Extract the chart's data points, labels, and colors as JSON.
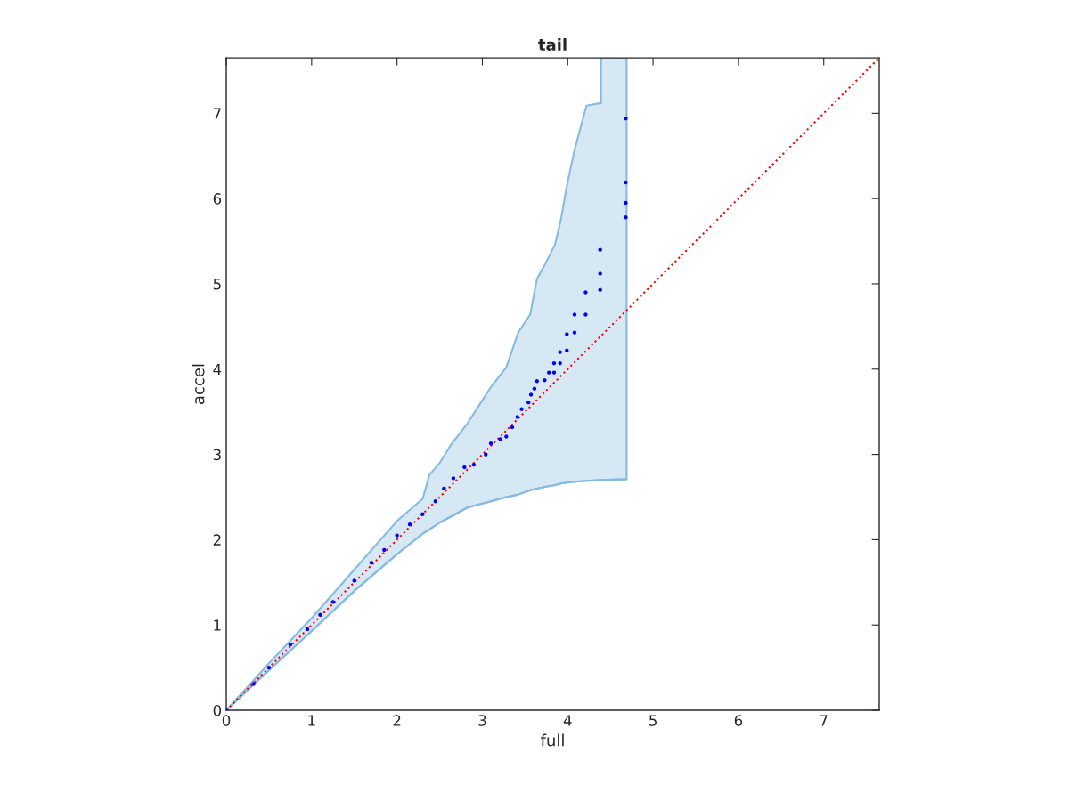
{
  "chart_data": {
    "type": "scatter",
    "title": "tail",
    "xlabel": "full",
    "ylabel": "accel",
    "xlim": [
      0,
      7.65
    ],
    "ylim": [
      0,
      7.65
    ],
    "xticks": [
      0,
      1,
      2,
      3,
      4,
      5,
      6,
      7
    ],
    "yticks": [
      0,
      1,
      2,
      3,
      4,
      5,
      6,
      7
    ],
    "grid": false,
    "series": [
      {
        "type": "line",
        "color": "#87bae1",
        "values": [
          0,
          0.47,
          0.93,
          1.4,
          1.83,
          2.07,
          2.12,
          2.2,
          2.27,
          2.38,
          2.45,
          2.5,
          2.53,
          2.58,
          2.6,
          2.62,
          2.64,
          2.66,
          2.67,
          2.68,
          2.69,
          2.7,
          2.7,
          2.71
        ],
        "x": [
          0,
          0.5,
          1,
          1.5,
          2,
          2.3,
          2.38,
          2.5,
          2.63,
          2.83,
          3.1,
          3.28,
          3.42,
          3.56,
          3.64,
          3.73,
          3.85,
          3.92,
          3.99,
          4.08,
          4.22,
          4.39,
          4.39,
          4.69
        ],
        "upper": [
          0,
          0.55,
          1.08,
          1.65,
          2.22,
          2.48,
          2.76,
          2.9,
          3.11,
          3.37,
          3.79,
          4.02,
          4.43,
          4.64,
          5.06,
          5.22,
          5.46,
          5.75,
          6.15,
          6.57,
          7.09,
          7.12,
          7.65,
          7.65
        ],
        "lower": [
          0,
          0.47,
          0.93,
          1.4,
          1.83,
          2.07,
          2.12,
          2.2,
          2.27,
          2.38,
          2.45,
          2.5,
          2.53,
          2.58,
          2.6,
          2.62,
          2.64,
          2.66,
          2.67,
          2.68,
          2.69,
          2.7,
          2.7,
          2.71
        ]
      },
      {
        "type": "line",
        "color": "#ff0000",
        "line_style": "dotted",
        "marker": "none",
        "x": [
          0,
          7.65
        ],
        "values": [
          0,
          7.65
        ]
      },
      {
        "color": "#0000ff",
        "marker": "circle",
        "x": [
          0,
          0.32,
          0.5,
          0.75,
          0.95,
          1.1,
          1.25,
          1.5,
          1.7,
          1.85,
          2.0,
          2.15,
          2.3,
          2.45,
          2.55,
          2.66,
          2.79,
          2.9,
          3.04,
          3.1,
          3.21,
          3.28,
          3.35,
          3.41,
          3.46,
          3.54,
          3.57,
          3.61,
          3.64,
          3.73,
          3.78,
          3.84,
          3.84,
          3.91,
          3.91,
          3.99,
          3.99,
          4.08,
          4.08,
          4.21,
          4.21,
          4.38,
          4.38,
          4.38,
          4.68,
          4.68,
          4.68,
          4.68
        ],
        "values": [
          0,
          0.31,
          0.5,
          0.77,
          0.95,
          1.12,
          1.27,
          1.52,
          1.73,
          1.88,
          2.05,
          2.18,
          2.3,
          2.45,
          2.6,
          2.72,
          2.85,
          2.88,
          3.0,
          3.13,
          3.18,
          3.21,
          3.32,
          3.44,
          3.53,
          3.61,
          3.7,
          3.77,
          3.86,
          3.87,
          3.96,
          3.96,
          4.07,
          4.07,
          4.2,
          4.22,
          4.41,
          4.43,
          4.64,
          4.64,
          4.9,
          4.93,
          5.12,
          5.4,
          5.78,
          5.95,
          6.19,
          6.94
        ]
      }
    ]
  }
}
